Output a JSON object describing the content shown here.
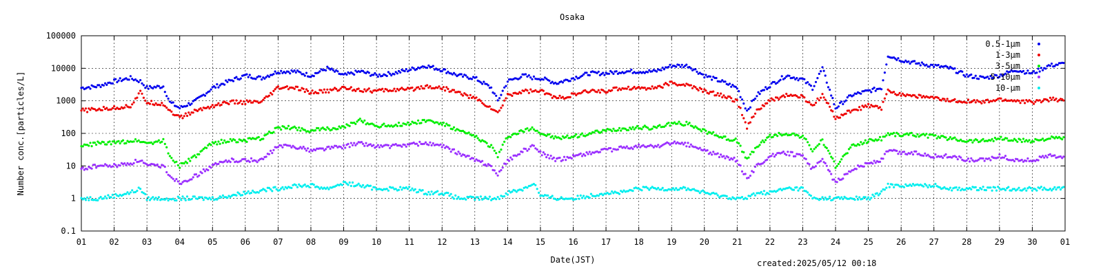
{
  "chart_data": {
    "type": "scatter",
    "title": "Osaka",
    "xlabel": "Date(JST)",
    "ylabel": "Number conc.[particles/L]",
    "y_scale": "log",
    "ylim": [
      0.1,
      100000
    ],
    "y_ticks": [
      "0.1",
      "1",
      "10",
      "100",
      "1000",
      "10000",
      "100000"
    ],
    "xlim": [
      1,
      31
    ],
    "x_ticks": [
      "01",
      "02",
      "03",
      "04",
      "05",
      "06",
      "07",
      "08",
      "09",
      "10",
      "11",
      "12",
      "13",
      "14",
      "15",
      "16",
      "17",
      "18",
      "19",
      "20",
      "21",
      "22",
      "23",
      "24",
      "25",
      "26",
      "27",
      "28",
      "29",
      "30",
      "01"
    ],
    "grid": true,
    "legend_position": "top-right",
    "x_day": [
      1,
      1.5,
      2,
      2.5,
      2.8,
      3,
      3.5,
      3.7,
      4,
      4.5,
      5,
      5.5,
      6,
      6.5,
      7,
      7.5,
      8,
      8.5,
      9,
      9.5,
      10,
      10.5,
      11,
      11.5,
      12,
      12.5,
      13,
      13.5,
      13.7,
      14,
      14.5,
      14.8,
      15,
      15.5,
      16,
      16.5,
      17,
      17.5,
      18,
      18.5,
      19,
      19.5,
      20,
      20.5,
      21,
      21.3,
      21.6,
      22,
      22.5,
      23,
      23.3,
      23.6,
      24,
      24.5,
      25,
      25.4,
      25.6,
      26,
      26.5,
      27,
      27.5,
      28,
      28.5,
      29,
      29.5,
      30,
      30.5,
      31
    ],
    "series": [
      {
        "name": "0.5-1μm",
        "color": "#0000ee",
        "values": [
          2500,
          2800,
          4000,
          5000,
          4000,
          2500,
          2800,
          900,
          600,
          1000,
          2500,
          4000,
          6000,
          5000,
          8000,
          8000,
          6000,
          10000,
          6000,
          8000,
          6000,
          7000,
          9000,
          12000,
          9000,
          6000,
          5000,
          2500,
          1000,
          4000,
          6000,
          5000,
          5000,
          3500,
          5000,
          7000,
          7000,
          8000,
          8000,
          8000,
          12000,
          12000,
          6000,
          4000,
          2500,
          500,
          1500,
          3000,
          6000,
          4500,
          2500,
          10000,
          600,
          1500,
          2000,
          2500,
          25000,
          18000,
          14000,
          12000,
          10000,
          6000,
          5000,
          6000,
          9000,
          7000,
          12000,
          14000
        ]
      },
      {
        "name": "1-3μm",
        "color": "#ee0000",
        "values": [
          500,
          550,
          600,
          700,
          1800,
          900,
          800,
          500,
          300,
          500,
          700,
          900,
          900,
          900,
          2500,
          2500,
          1800,
          2000,
          2500,
          2200,
          2000,
          2200,
          2200,
          2800,
          2500,
          1800,
          1200,
          600,
          400,
          1500,
          2000,
          2000,
          2000,
          1200,
          1500,
          2000,
          2000,
          2500,
          2500,
          2500,
          3500,
          3000,
          2000,
          1500,
          1000,
          150,
          500,
          1000,
          1500,
          1300,
          700,
          1500,
          300,
          500,
          700,
          600,
          2000,
          1600,
          1400,
          1200,
          1000,
          1000,
          900,
          1100,
          1000,
          900,
          1100,
          1100
        ]
      },
      {
        "name": "3-5μm",
        "color": "#00ee00",
        "values": [
          40,
          50,
          50,
          60,
          60,
          50,
          60,
          20,
          10,
          20,
          50,
          60,
          60,
          70,
          150,
          150,
          120,
          140,
          150,
          250,
          170,
          180,
          200,
          250,
          200,
          120,
          80,
          40,
          20,
          80,
          120,
          150,
          100,
          70,
          80,
          100,
          120,
          140,
          150,
          150,
          200,
          200,
          120,
          80,
          60,
          15,
          40,
          80,
          100,
          80,
          30,
          60,
          10,
          40,
          60,
          70,
          100,
          90,
          90,
          80,
          70,
          60,
          60,
          70,
          60,
          60,
          70,
          70
        ]
      },
      {
        "name": "5-10μm",
        "color": "#9b30ff",
        "values": [
          8,
          10,
          10,
          12,
          15,
          10,
          10,
          5,
          3,
          5,
          10,
          15,
          15,
          15,
          40,
          40,
          30,
          35,
          40,
          50,
          40,
          40,
          45,
          50,
          40,
          25,
          15,
          10,
          5,
          15,
          30,
          40,
          25,
          15,
          20,
          25,
          30,
          35,
          40,
          40,
          50,
          45,
          30,
          20,
          15,
          4,
          10,
          20,
          25,
          20,
          8,
          15,
          3,
          8,
          12,
          15,
          30,
          25,
          25,
          20,
          20,
          15,
          15,
          20,
          15,
          15,
          20,
          20
        ]
      },
      {
        "name": "10-μm",
        "color": "#00eeee",
        "values": [
          1,
          1,
          1.2,
          1.5,
          2,
          1,
          1,
          1,
          1,
          1,
          1,
          1.2,
          1.5,
          1.8,
          2,
          2.5,
          2.5,
          2,
          3,
          2.5,
          2,
          2,
          2,
          1.5,
          1.5,
          1,
          1,
          1,
          1,
          1.5,
          2,
          3,
          1.2,
          1,
          1,
          1.2,
          1.5,
          1.5,
          2,
          2,
          2,
          2,
          1.5,
          1.2,
          1,
          1,
          1.5,
          1.5,
          2,
          2,
          1,
          1,
          1,
          1,
          1,
          1.5,
          2.5,
          2.5,
          2.5,
          2.5,
          2,
          2,
          2,
          2,
          2,
          2,
          2,
          2
        ]
      }
    ]
  },
  "footer": {
    "created": "created:2025/05/12 00:18"
  }
}
